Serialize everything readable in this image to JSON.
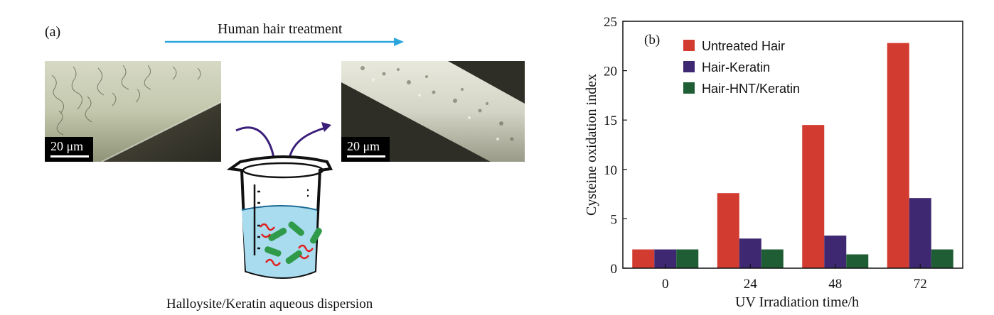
{
  "panel_a": {
    "label": "(a)",
    "treatment_label": "Human hair treatment",
    "scale_before": "20 μm",
    "scale_after": "20 μm",
    "caption": "Halloysite/Keratin aqueous dispersion",
    "arrow_color": "#2aa6dc",
    "curve_arrow_color": "#3b1f7a"
  },
  "panel_b": {
    "label": "(b)"
  },
  "chart_data": {
    "type": "bar",
    "title": "",
    "xlabel": "UV Irradiation time/h",
    "ylabel": "Cysteine oxidation index",
    "categories": [
      "0",
      "24",
      "48",
      "72"
    ],
    "ylim": [
      0,
      25
    ],
    "yticks": [
      0,
      5,
      10,
      15,
      20,
      25
    ],
    "grid": false,
    "legend_position": "top-left",
    "series": [
      {
        "name": "Untreated Hair",
        "color": "#d23b2f",
        "values": [
          1.9,
          7.6,
          14.5,
          22.8
        ]
      },
      {
        "name": "Hair-Keratin",
        "color": "#3f2872",
        "values": [
          1.9,
          3.0,
          3.3,
          7.1
        ]
      },
      {
        "name": "Hair-HNT/Keratin",
        "color": "#1f5e34",
        "values": [
          1.9,
          1.9,
          1.4,
          1.9
        ]
      }
    ]
  }
}
